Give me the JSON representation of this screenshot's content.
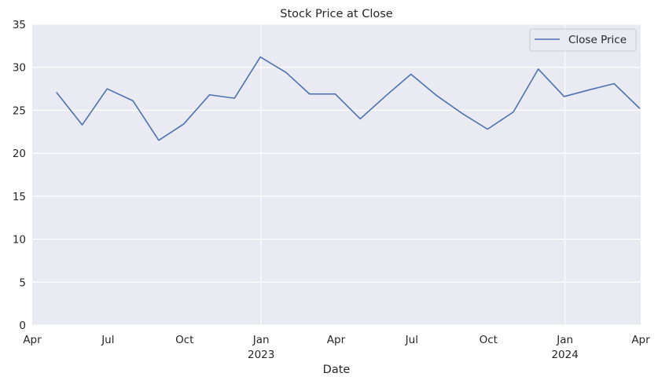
{
  "chart_data": {
    "type": "line",
    "title": "Stock Price at Close",
    "xlabel": "Date",
    "ylabel": "",
    "xlim": [
      "2022-04-01",
      "2024-04-01"
    ],
    "ylim": [
      0,
      35
    ],
    "yticks": [
      0,
      5,
      10,
      15,
      20,
      25,
      30,
      35
    ],
    "xticks": [
      {
        "date": "2022-04-01",
        "label": "Apr",
        "sublabel": ""
      },
      {
        "date": "2022-07-01",
        "label": "Jul",
        "sublabel": ""
      },
      {
        "date": "2022-10-01",
        "label": "Oct",
        "sublabel": ""
      },
      {
        "date": "2023-01-01",
        "label": "Jan",
        "sublabel": "2023"
      },
      {
        "date": "2023-04-01",
        "label": "Apr",
        "sublabel": ""
      },
      {
        "date": "2023-07-01",
        "label": "Jul",
        "sublabel": ""
      },
      {
        "date": "2023-10-01",
        "label": "Oct",
        "sublabel": ""
      },
      {
        "date": "2024-01-01",
        "label": "Jan",
        "sublabel": "2024"
      },
      {
        "date": "2024-04-01",
        "label": "Apr",
        "sublabel": ""
      }
    ],
    "grid": true,
    "legend_position": "top-right",
    "series": [
      {
        "name": "Close Price",
        "color": "#4c72b0",
        "x": [
          "2022-04-30",
          "2022-05-31",
          "2022-06-30",
          "2022-07-31",
          "2022-08-31",
          "2022-09-30",
          "2022-10-31",
          "2022-11-30",
          "2022-12-31",
          "2023-01-31",
          "2023-02-28",
          "2023-03-31",
          "2023-04-30",
          "2023-05-31",
          "2023-06-30",
          "2023-07-31",
          "2023-08-31",
          "2023-09-30",
          "2023-10-31",
          "2023-11-30",
          "2023-12-31",
          "2024-01-31",
          "2024-02-29",
          "2024-03-31"
        ],
        "y": [
          27.1,
          23.3,
          27.5,
          26.1,
          21.5,
          23.4,
          26.8,
          26.4,
          31.2,
          29.4,
          26.9,
          26.9,
          24.0,
          26.7,
          29.2,
          26.7,
          24.6,
          22.8,
          24.8,
          29.8,
          26.6,
          27.4,
          28.1,
          25.2
        ]
      }
    ]
  }
}
